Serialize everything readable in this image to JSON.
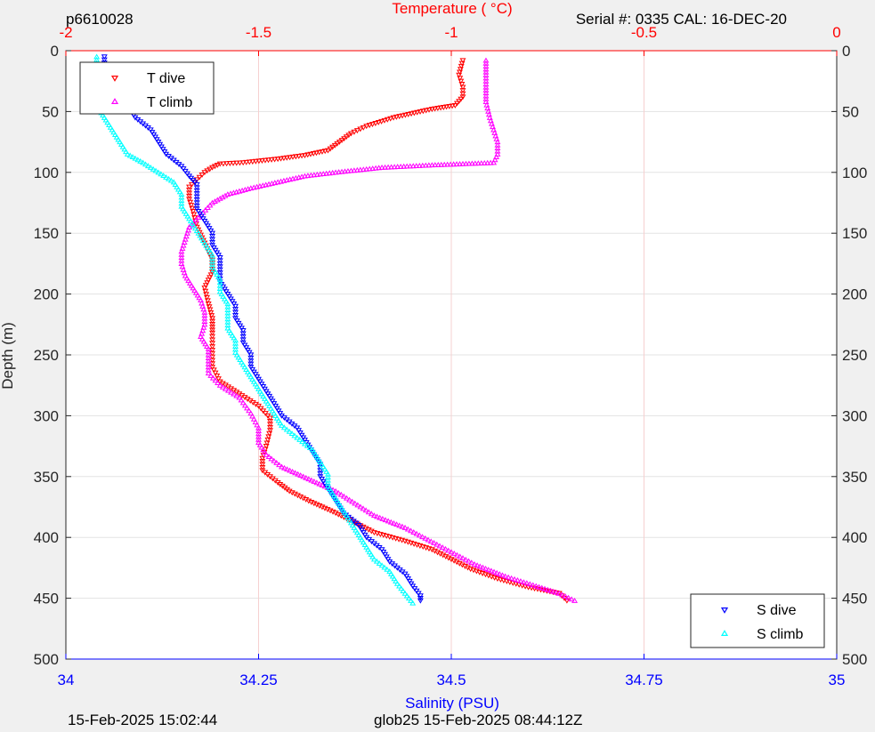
{
  "header": {
    "id": "p6610028",
    "serial": "Serial #: 0335  CAL: 16-DEC-20"
  },
  "footer": {
    "left": "15-Feb-2025 15:02:44",
    "right": "glob25 15-Feb-2025 08:44:12Z"
  },
  "colors": {
    "t_dive": "#ff0000",
    "t_climb": "#ff00ff",
    "s_dive": "#0000ff",
    "s_climb": "#00ffff",
    "temp_axis": "#ff0000",
    "sal_axis": "#0000ff"
  },
  "chart_data": {
    "type": "scatter",
    "y_axis": {
      "label": "Depth (m)",
      "range": [
        0,
        500
      ],
      "ticks": [
        0,
        50,
        100,
        150,
        200,
        250,
        300,
        350,
        400,
        450,
        500
      ],
      "reversed": true
    },
    "top_axis": {
      "label": "Temperature (    °C)",
      "range": [
        -2,
        0
      ],
      "ticks": [
        -2,
        -1.5,
        -1,
        -0.5,
        0
      ],
      "tick_labels": [
        "-2",
        "-1.5",
        "-1",
        "-0.5",
        "0"
      ]
    },
    "bottom_axis": {
      "label": "Salinity (PSU)",
      "range": [
        34,
        35
      ],
      "ticks": [
        34,
        34.25,
        34.5,
        34.75,
        35
      ],
      "tick_labels": [
        "34",
        "34.25",
        "34.5",
        "34.75",
        "35"
      ]
    },
    "grid": true,
    "legends": [
      {
        "placement": "top-left",
        "entries": [
          "T dive",
          "T climb"
        ]
      },
      {
        "placement": "bottom-right",
        "entries": [
          "S dive",
          "S climb"
        ]
      }
    ],
    "series": [
      {
        "name": "T dive",
        "axis": "temperature",
        "marker": "triangle-down",
        "points": [
          [
            -0.97,
            8
          ],
          [
            -0.98,
            20
          ],
          [
            -0.97,
            30
          ],
          [
            -0.97,
            38
          ],
          [
            -0.99,
            45
          ],
          [
            -1.05,
            48
          ],
          [
            -1.15,
            55
          ],
          [
            -1.22,
            62
          ],
          [
            -1.26,
            68
          ],
          [
            -1.29,
            75
          ],
          [
            -1.32,
            82
          ],
          [
            -1.38,
            86
          ],
          [
            -1.45,
            89
          ],
          [
            -1.54,
            92
          ],
          [
            -1.6,
            93
          ],
          [
            -1.62,
            96
          ],
          [
            -1.64,
            100
          ],
          [
            -1.66,
            106
          ],
          [
            -1.68,
            112
          ],
          [
            -1.68,
            122
          ],
          [
            -1.67,
            132
          ],
          [
            -1.66,
            145
          ],
          [
            -1.64,
            158
          ],
          [
            -1.62,
            172
          ],
          [
            -1.62,
            182
          ],
          [
            -1.64,
            195
          ],
          [
            -1.63,
            208
          ],
          [
            -1.62,
            220
          ],
          [
            -1.62,
            232
          ],
          [
            -1.62,
            246
          ],
          [
            -1.62,
            260
          ],
          [
            -1.6,
            272
          ],
          [
            -1.55,
            282
          ],
          [
            -1.5,
            292
          ],
          [
            -1.47,
            302
          ],
          [
            -1.47,
            312
          ],
          [
            -1.48,
            325
          ],
          [
            -1.49,
            335
          ],
          [
            -1.49,
            345
          ],
          [
            -1.45,
            355
          ],
          [
            -1.42,
            362
          ],
          [
            -1.37,
            370
          ],
          [
            -1.3,
            380
          ],
          [
            -1.25,
            388
          ],
          [
            -1.2,
            396
          ],
          [
            -1.12,
            403
          ],
          [
            -1.05,
            410
          ],
          [
            -1.0,
            418
          ],
          [
            -0.95,
            426
          ],
          [
            -0.88,
            434
          ],
          [
            -0.8,
            441
          ],
          [
            -0.72,
            446
          ],
          [
            -0.7,
            452
          ]
        ]
      },
      {
        "name": "T climb",
        "axis": "temperature",
        "marker": "triangle-up",
        "points": [
          [
            -0.91,
            8
          ],
          [
            -0.91,
            20
          ],
          [
            -0.91,
            30
          ],
          [
            -0.91,
            42
          ],
          [
            -0.9,
            55
          ],
          [
            -0.89,
            65
          ],
          [
            -0.88,
            75
          ],
          [
            -0.88,
            85
          ],
          [
            -0.89,
            92
          ],
          [
            -1.05,
            94
          ],
          [
            -1.18,
            96
          ],
          [
            -1.3,
            100
          ],
          [
            -1.38,
            103
          ],
          [
            -1.45,
            108
          ],
          [
            -1.52,
            113
          ],
          [
            -1.58,
            118
          ],
          [
            -1.62,
            125
          ],
          [
            -1.65,
            135
          ],
          [
            -1.68,
            145
          ],
          [
            -1.69,
            155
          ],
          [
            -1.7,
            165
          ],
          [
            -1.7,
            175
          ],
          [
            -1.69,
            185
          ],
          [
            -1.67,
            195
          ],
          [
            -1.65,
            205
          ],
          [
            -1.64,
            215
          ],
          [
            -1.64,
            225
          ],
          [
            -1.65,
            235
          ],
          [
            -1.63,
            245
          ],
          [
            -1.63,
            255
          ],
          [
            -1.63,
            265
          ],
          [
            -1.6,
            275
          ],
          [
            -1.55,
            285
          ],
          [
            -1.52,
            298
          ],
          [
            -1.5,
            310
          ],
          [
            -1.5,
            322
          ],
          [
            -1.48,
            332
          ],
          [
            -1.44,
            342
          ],
          [
            -1.37,
            352
          ],
          [
            -1.3,
            362
          ],
          [
            -1.25,
            372
          ],
          [
            -1.2,
            382
          ],
          [
            -1.12,
            392
          ],
          [
            -1.06,
            402
          ],
          [
            -1.0,
            412
          ],
          [
            -0.94,
            422
          ],
          [
            -0.86,
            432
          ],
          [
            -0.78,
            440
          ],
          [
            -0.72,
            446
          ],
          [
            -0.68,
            452
          ]
        ]
      },
      {
        "name": "S dive",
        "axis": "salinity",
        "marker": "triangle-down",
        "points": [
          [
            34.05,
            5
          ],
          [
            34.05,
            15
          ],
          [
            34.05,
            25
          ],
          [
            34.06,
            35
          ],
          [
            34.08,
            45
          ],
          [
            34.09,
            55
          ],
          [
            34.11,
            65
          ],
          [
            34.12,
            75
          ],
          [
            34.13,
            85
          ],
          [
            34.15,
            95
          ],
          [
            34.16,
            103
          ],
          [
            34.17,
            110
          ],
          [
            34.17,
            120
          ],
          [
            34.17,
            130
          ],
          [
            34.18,
            140
          ],
          [
            34.19,
            150
          ],
          [
            34.19,
            160
          ],
          [
            34.2,
            170
          ],
          [
            34.2,
            180
          ],
          [
            34.2,
            190
          ],
          [
            34.21,
            200
          ],
          [
            34.22,
            210
          ],
          [
            34.22,
            220
          ],
          [
            34.23,
            230
          ],
          [
            34.23,
            240
          ],
          [
            34.24,
            250
          ],
          [
            34.24,
            260
          ],
          [
            34.25,
            270
          ],
          [
            34.26,
            280
          ],
          [
            34.27,
            290
          ],
          [
            34.28,
            300
          ],
          [
            34.3,
            310
          ],
          [
            34.31,
            320
          ],
          [
            34.32,
            330
          ],
          [
            34.33,
            340
          ],
          [
            34.33,
            350
          ],
          [
            34.34,
            360
          ],
          [
            34.35,
            370
          ],
          [
            34.36,
            380
          ],
          [
            34.38,
            390
          ],
          [
            34.39,
            400
          ],
          [
            34.41,
            410
          ],
          [
            34.42,
            420
          ],
          [
            34.44,
            430
          ],
          [
            34.45,
            440
          ],
          [
            34.46,
            448
          ],
          [
            34.46,
            452
          ]
        ]
      },
      {
        "name": "S climb",
        "axis": "salinity",
        "marker": "triangle-up",
        "points": [
          [
            34.04,
            5
          ],
          [
            34.04,
            15
          ],
          [
            34.04,
            25
          ],
          [
            34.04,
            35
          ],
          [
            34.04,
            45
          ],
          [
            34.05,
            55
          ],
          [
            34.06,
            65
          ],
          [
            34.07,
            75
          ],
          [
            34.08,
            85
          ],
          [
            34.1,
            92
          ],
          [
            34.12,
            100
          ],
          [
            34.14,
            108
          ],
          [
            34.15,
            118
          ],
          [
            34.15,
            128
          ],
          [
            34.16,
            138
          ],
          [
            34.17,
            148
          ],
          [
            34.18,
            158
          ],
          [
            34.19,
            168
          ],
          [
            34.19,
            178
          ],
          [
            34.2,
            188
          ],
          [
            34.2,
            198
          ],
          [
            34.21,
            208
          ],
          [
            34.21,
            218
          ],
          [
            34.21,
            228
          ],
          [
            34.22,
            238
          ],
          [
            34.22,
            248
          ],
          [
            34.23,
            258
          ],
          [
            34.24,
            268
          ],
          [
            34.25,
            278
          ],
          [
            34.26,
            288
          ],
          [
            34.27,
            298
          ],
          [
            34.28,
            308
          ],
          [
            34.3,
            318
          ],
          [
            34.32,
            328
          ],
          [
            34.33,
            338
          ],
          [
            34.34,
            348
          ],
          [
            34.34,
            358
          ],
          [
            34.35,
            368
          ],
          [
            34.36,
            378
          ],
          [
            34.37,
            388
          ],
          [
            34.38,
            398
          ],
          [
            34.39,
            408
          ],
          [
            34.4,
            418
          ],
          [
            34.42,
            428
          ],
          [
            34.43,
            438
          ],
          [
            34.44,
            446
          ],
          [
            34.45,
            454
          ]
        ]
      }
    ]
  }
}
